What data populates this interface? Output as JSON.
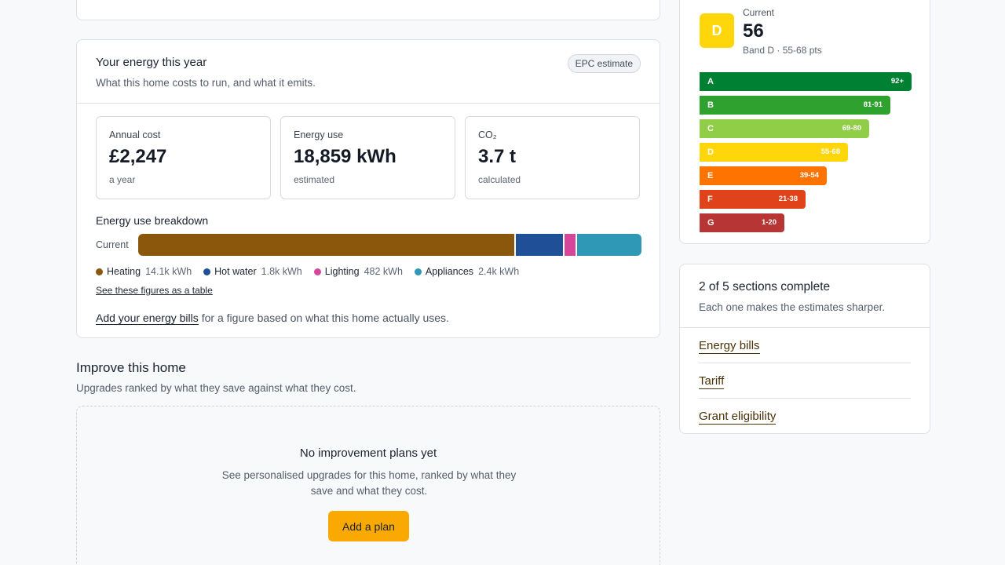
{
  "energy": {
    "title": "Your energy this year",
    "subtitle": "What this home costs to run, and what it emits.",
    "badge": "EPC estimate",
    "stats": [
      {
        "label": "Annual cost",
        "value": "£2,247",
        "note": "a year"
      },
      {
        "label": "Energy use",
        "value": "18,859 kWh",
        "note": "estimated"
      },
      {
        "label": "CO₂",
        "value": "3.7 t",
        "note": "calculated"
      }
    ],
    "breakdown": {
      "title": "Energy use breakdown",
      "row_label": "Current",
      "segments": [
        {
          "name": "Heating",
          "amount": "14.1k kWh",
          "kwh": 14100,
          "color": "#8a570c"
        },
        {
          "name": "Hot water",
          "amount": "1.8k kWh",
          "kwh": 1800,
          "color": "#1f4f96"
        },
        {
          "name": "Lighting",
          "amount": "482 kWh",
          "kwh": 482,
          "color": "#d6479b"
        },
        {
          "name": "Appliances",
          "amount": "2.4k kWh",
          "kwh": 2400,
          "color": "#2f98b7"
        }
      ],
      "table_link": "See these figures as a table"
    },
    "bills_link": "Add your energy bills",
    "bills_text": "for a figure based on what this home actually uses."
  },
  "improve": {
    "title": "Improve this home",
    "subtitle": "Upgrades ranked by what they save against what they cost.",
    "empty_title": "No improvement plans yet",
    "empty_text": "See personalised upgrades for this home, ranked by what they save and what they cost.",
    "button": "Add a plan",
    "button_color": "#f9a902"
  },
  "epc": {
    "current_label": "Current",
    "score": "56",
    "letter": "D",
    "band_text": "Band D · 55-68 pts",
    "ratings": [
      {
        "letter": "A",
        "range": "92+",
        "color": "#008033"
      },
      {
        "letter": "B",
        "range": "81-91",
        "color": "#2ea12f"
      },
      {
        "letter": "C",
        "range": "69-80",
        "color": "#8fce46"
      },
      {
        "letter": "D",
        "range": "55-68",
        "color": "#ffd60a"
      },
      {
        "letter": "E",
        "range": "39-54",
        "color": "#ff7400"
      },
      {
        "letter": "F",
        "range": "21-38",
        "color": "#e0421a"
      },
      {
        "letter": "G",
        "range": "1-20",
        "color": "#b73534"
      }
    ]
  },
  "progress": {
    "title": "2 of 5 sections complete",
    "subtitle": "Each one makes the estimates sharper.",
    "links": [
      "Energy bills",
      "Tariff",
      "Grant eligibility"
    ]
  }
}
